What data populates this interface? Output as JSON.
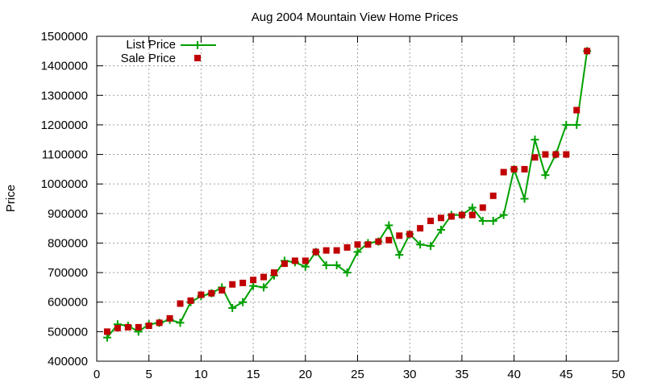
{
  "chart_data": {
    "type": "line",
    "title": "Aug 2004 Mountain View Home Prices",
    "xlabel": "",
    "ylabel": "Price",
    "xlim": [
      0,
      50
    ],
    "ylim": [
      400000,
      1500000
    ],
    "xticks": [
      0,
      5,
      10,
      15,
      20,
      25,
      30,
      35,
      40,
      45,
      50
    ],
    "yticks": [
      400000,
      500000,
      600000,
      700000,
      800000,
      900000,
      1000000,
      1100000,
      1200000,
      1300000,
      1400000,
      1500000
    ],
    "grid": true,
    "legend_position": "top-left",
    "series": [
      {
        "name": "List Price",
        "style": "line-with-plus-markers",
        "color": "#00a000",
        "x": [
          1,
          2,
          3,
          4,
          5,
          6,
          7,
          8,
          9,
          10,
          11,
          12,
          13,
          14,
          15,
          16,
          17,
          18,
          19,
          20,
          21,
          22,
          23,
          24,
          25,
          26,
          27,
          28,
          29,
          30,
          31,
          32,
          33,
          34,
          35,
          36,
          37,
          38,
          39,
          40,
          41,
          42,
          43,
          44,
          45,
          46,
          47
        ],
        "values": [
          480000,
          525000,
          520000,
          500000,
          525000,
          530000,
          540000,
          530000,
          600000,
          620000,
          630000,
          650000,
          580000,
          600000,
          655000,
          650000,
          690000,
          740000,
          735000,
          720000,
          770000,
          725000,
          725000,
          700000,
          770000,
          800000,
          805000,
          860000,
          760000,
          830000,
          795000,
          790000,
          845000,
          895000,
          895000,
          920000,
          875000,
          875000,
          895000,
          1050000,
          950000,
          1150000,
          1030000,
          1100000,
          1200000,
          1200000,
          1450000
        ]
      },
      {
        "name": "Sale Price",
        "style": "square-markers",
        "color": "#c00000",
        "x": [
          1,
          2,
          3,
          4,
          5,
          6,
          7,
          8,
          9,
          10,
          11,
          12,
          13,
          14,
          15,
          16,
          17,
          18,
          19,
          20,
          21,
          22,
          23,
          24,
          25,
          26,
          27,
          28,
          29,
          30,
          31,
          32,
          33,
          34,
          35,
          36,
          37,
          38,
          39,
          40,
          41,
          42,
          43,
          44,
          45,
          46,
          47
        ],
        "values": [
          500000,
          512000,
          515000,
          515000,
          520000,
          530000,
          545000,
          595000,
          605000,
          625000,
          630000,
          640000,
          660000,
          665000,
          675000,
          685000,
          700000,
          730000,
          740000,
          740000,
          770000,
          775000,
          775000,
          785000,
          795000,
          795000,
          805000,
          810000,
          825000,
          830000,
          850000,
          875000,
          885000,
          890000,
          895000,
          895000,
          920000,
          960000,
          1040000,
          1050000,
          1050000,
          1090000,
          1100000,
          1100000,
          1100000,
          1250000,
          1450000
        ]
      }
    ]
  }
}
